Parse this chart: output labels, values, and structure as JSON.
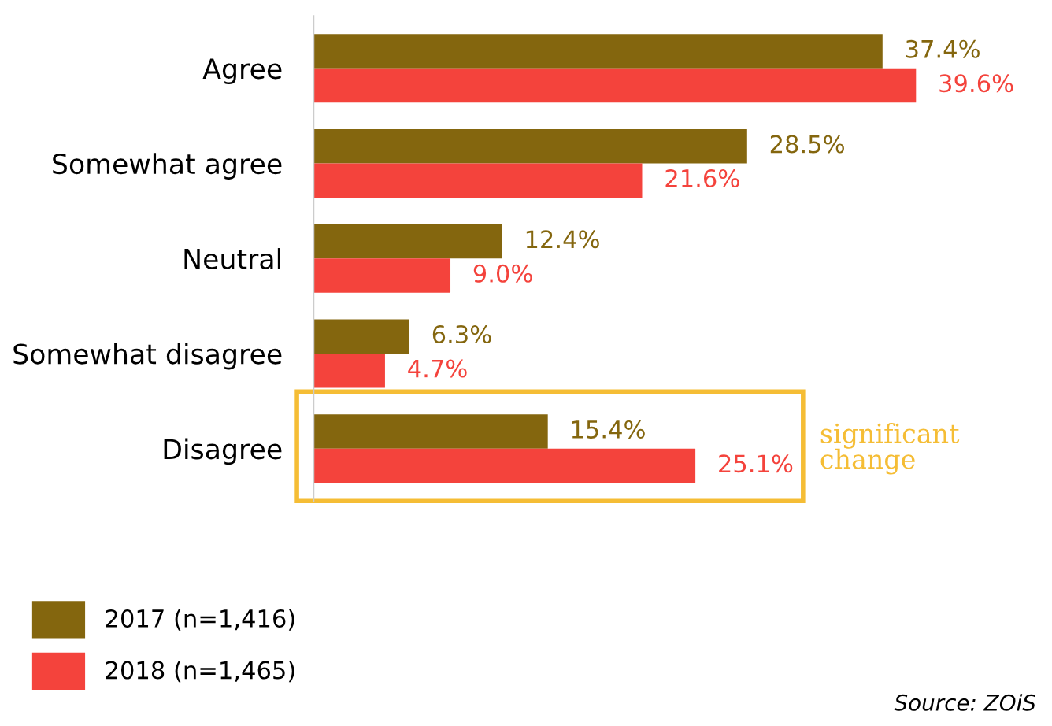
{
  "chart_data": {
    "type": "bar",
    "orientation": "horizontal",
    "categories": [
      "Agree",
      "Somewhat agree",
      "Neutral",
      "Somewhat disagree",
      "Disagree"
    ],
    "series": [
      {
        "name": "2017 (n=1,416)",
        "color": "#84660e",
        "values": [
          37.4,
          28.5,
          12.4,
          6.3,
          15.4
        ],
        "value_labels": [
          "37.4%",
          "28.5%",
          "12.4%",
          "6.3%",
          "15.4%"
        ]
      },
      {
        "name": "2018 (n=1,465)",
        "color": "#f4433c",
        "values": [
          39.6,
          21.6,
          9.0,
          4.7,
          25.1
        ],
        "value_labels": [
          "39.6%",
          "21.6%",
          "9.0%",
          "4.7%",
          "25.1%"
        ]
      }
    ],
    "annotations": [
      "significant change",
      "Source: ZOiS"
    ],
    "legend": "bottom left",
    "grid": false
  }
}
